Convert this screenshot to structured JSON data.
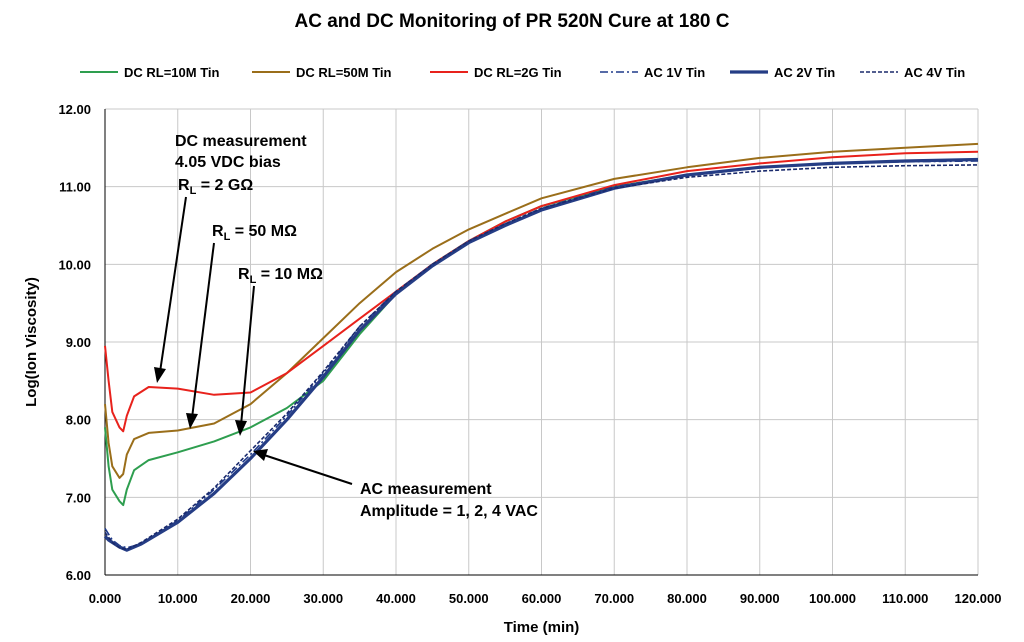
{
  "chart_data": {
    "type": "line",
    "title": "AC and DC Monitoring of PR 520N Cure at 180 C",
    "xlabel": "Time (min)",
    "ylabel": "Log(Ion Viscosity)",
    "xlim": [
      0,
      120
    ],
    "ylim": [
      6,
      12
    ],
    "x_ticks": [
      "0.000",
      "10.000",
      "20.000",
      "30.000",
      "40.000",
      "50.000",
      "60.000",
      "70.000",
      "80.000",
      "90.000",
      "100.000",
      "110.000",
      "120.000"
    ],
    "y_ticks": [
      "6.00",
      "7.00",
      "8.00",
      "9.00",
      "10.00",
      "11.00",
      "12.00"
    ],
    "grid": true,
    "legend_position": "top",
    "series": [
      {
        "name": "DC RL=10M Tin",
        "color": "#2e9e4f",
        "style": "solid",
        "points": [
          [
            0,
            7.9
          ],
          [
            0.5,
            7.4
          ],
          [
            1,
            7.1
          ],
          [
            2,
            6.95
          ],
          [
            2.5,
            6.9
          ],
          [
            3,
            7.1
          ],
          [
            4,
            7.35
          ],
          [
            6,
            7.48
          ],
          [
            10,
            7.58
          ],
          [
            15,
            7.72
          ],
          [
            20,
            7.9
          ],
          [
            25,
            8.15
          ],
          [
            30,
            8.5
          ],
          [
            35,
            9.1
          ],
          [
            40,
            9.62
          ],
          [
            45,
            10.0
          ],
          [
            50,
            10.3
          ],
          [
            55,
            10.55
          ],
          [
            60,
            10.75
          ],
          [
            70,
            11.0
          ],
          [
            80,
            11.15
          ],
          [
            90,
            11.25
          ],
          [
            100,
            11.3
          ],
          [
            110,
            11.33
          ],
          [
            120,
            11.35
          ]
        ]
      },
      {
        "name": "DC RL=50M Tin",
        "color": "#9a6e1a",
        "style": "solid",
        "points": [
          [
            0,
            8.2
          ],
          [
            0.5,
            7.7
          ],
          [
            1,
            7.4
          ],
          [
            2,
            7.25
          ],
          [
            2.5,
            7.3
          ],
          [
            3,
            7.55
          ],
          [
            4,
            7.75
          ],
          [
            6,
            7.83
          ],
          [
            10,
            7.86
          ],
          [
            15,
            7.95
          ],
          [
            20,
            8.2
          ],
          [
            25,
            8.6
          ],
          [
            30,
            9.05
          ],
          [
            35,
            9.5
          ],
          [
            40,
            9.9
          ],
          [
            45,
            10.2
          ],
          [
            50,
            10.45
          ],
          [
            55,
            10.65
          ],
          [
            60,
            10.85
          ],
          [
            70,
            11.1
          ],
          [
            80,
            11.25
          ],
          [
            90,
            11.37
          ],
          [
            100,
            11.45
          ],
          [
            110,
            11.5
          ],
          [
            120,
            11.55
          ]
        ]
      },
      {
        "name": "DC RL=2G Tin",
        "color": "#e8221c",
        "style": "solid",
        "points": [
          [
            0,
            8.95
          ],
          [
            0.5,
            8.5
          ],
          [
            1,
            8.1
          ],
          [
            2,
            7.9
          ],
          [
            2.5,
            7.85
          ],
          [
            3,
            8.05
          ],
          [
            4,
            8.3
          ],
          [
            6,
            8.42
          ],
          [
            10,
            8.4
          ],
          [
            15,
            8.32
          ],
          [
            20,
            8.35
          ],
          [
            25,
            8.6
          ],
          [
            30,
            8.95
          ],
          [
            35,
            9.3
          ],
          [
            40,
            9.65
          ],
          [
            45,
            10.0
          ],
          [
            50,
            10.3
          ],
          [
            55,
            10.55
          ],
          [
            60,
            10.75
          ],
          [
            70,
            11.02
          ],
          [
            80,
            11.2
          ],
          [
            90,
            11.3
          ],
          [
            100,
            11.38
          ],
          [
            110,
            11.43
          ],
          [
            120,
            11.45
          ]
        ]
      },
      {
        "name": "AC 1V Tin",
        "color": "#1f3a8a",
        "style": "dashdot",
        "points": [
          [
            0,
            6.6
          ],
          [
            1,
            6.45
          ],
          [
            2,
            6.38
          ],
          [
            3,
            6.35
          ],
          [
            5,
            6.4
          ],
          [
            10,
            6.7
          ],
          [
            15,
            7.1
          ],
          [
            20,
            7.55
          ],
          [
            25,
            8.05
          ],
          [
            30,
            8.6
          ],
          [
            35,
            9.2
          ],
          [
            40,
            9.65
          ],
          [
            45,
            10.0
          ],
          [
            50,
            10.3
          ],
          [
            55,
            10.52
          ],
          [
            60,
            10.72
          ],
          [
            70,
            11.0
          ],
          [
            80,
            11.15
          ],
          [
            90,
            11.25
          ],
          [
            100,
            11.3
          ],
          [
            110,
            11.32
          ],
          [
            120,
            11.33
          ]
        ]
      },
      {
        "name": "AC 2V Tin",
        "color": "#253d85",
        "style": "thick",
        "points": [
          [
            0,
            6.5
          ],
          [
            0.5,
            6.45
          ],
          [
            1,
            6.42
          ],
          [
            2,
            6.36
          ],
          [
            3,
            6.32
          ],
          [
            5,
            6.4
          ],
          [
            10,
            6.68
          ],
          [
            15,
            7.05
          ],
          [
            20,
            7.5
          ],
          [
            25,
            8.0
          ],
          [
            30,
            8.55
          ],
          [
            35,
            9.15
          ],
          [
            40,
            9.62
          ],
          [
            45,
            9.98
          ],
          [
            50,
            10.28
          ],
          [
            55,
            10.5
          ],
          [
            60,
            10.7
          ],
          [
            70,
            10.98
          ],
          [
            80,
            11.15
          ],
          [
            90,
            11.25
          ],
          [
            100,
            11.3
          ],
          [
            110,
            11.33
          ],
          [
            120,
            11.35
          ]
        ]
      },
      {
        "name": "AC 4V Tin",
        "color": "#1a2a6c",
        "style": "dashed",
        "points": [
          [
            0,
            6.55
          ],
          [
            1,
            6.42
          ],
          [
            2,
            6.35
          ],
          [
            3,
            6.33
          ],
          [
            5,
            6.42
          ],
          [
            10,
            6.72
          ],
          [
            15,
            7.12
          ],
          [
            20,
            7.6
          ],
          [
            25,
            8.08
          ],
          [
            30,
            8.62
          ],
          [
            35,
            9.2
          ],
          [
            40,
            9.65
          ],
          [
            45,
            10.0
          ],
          [
            50,
            10.3
          ],
          [
            55,
            10.52
          ],
          [
            60,
            10.72
          ],
          [
            70,
            10.98
          ],
          [
            80,
            11.12
          ],
          [
            90,
            11.2
          ],
          [
            100,
            11.25
          ],
          [
            110,
            11.27
          ],
          [
            120,
            11.28
          ]
        ]
      }
    ],
    "annotations": {
      "dc_line1": "DC measurement",
      "dc_line2": "4.05 VDC bias",
      "rl_2g_prefix": "R",
      "rl_2g_sub": "L",
      "rl_2g_value": " = 2 GΩ",
      "rl_50m_prefix": "R",
      "rl_50m_sub": "L",
      "rl_50m_value": " = 50 MΩ",
      "rl_10m_prefix": "R",
      "rl_10m_sub": "L",
      "rl_10m_value": " = 10 MΩ",
      "ac_line1": "AC measurement",
      "ac_line2": "Amplitude = 1, 2, 4 VAC"
    }
  }
}
